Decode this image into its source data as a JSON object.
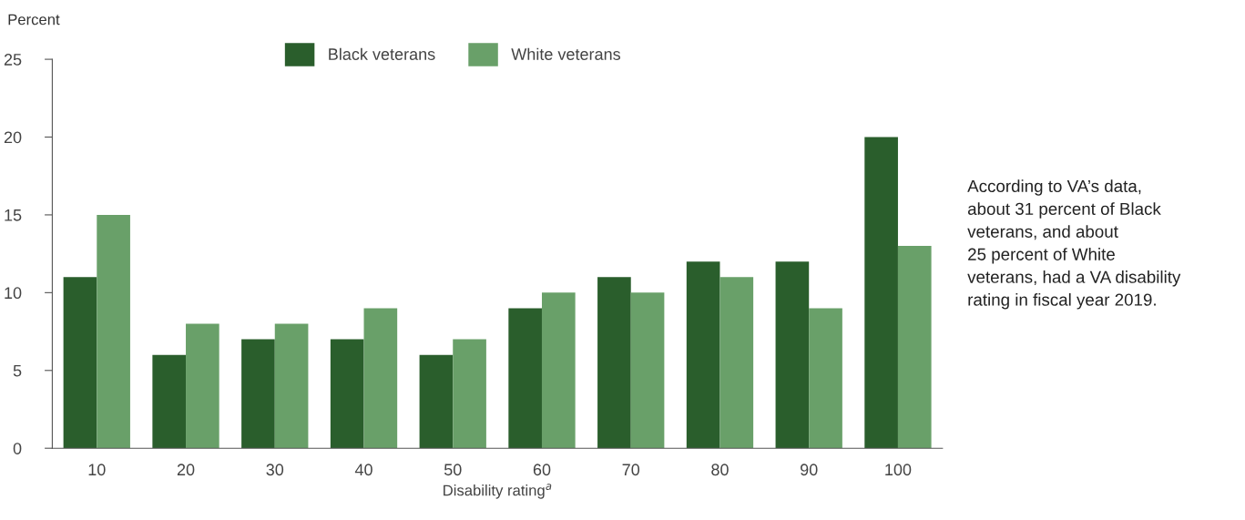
{
  "chart_data": {
    "type": "bar",
    "xlabel": "Disability rating$^{a}$",
    "ylabel": "Percent",
    "categories": [
      "10",
      "20",
      "30",
      "40",
      "50",
      "60",
      "70",
      "80",
      "90",
      "100"
    ],
    "series": [
      {
        "name": "Black veterans",
        "color": "#2a5e2c",
        "values": [
          11,
          6,
          7,
          7,
          6,
          9,
          11,
          12,
          12,
          20
        ]
      },
      {
        "name": "White veterans",
        "color": "#69a069",
        "values": [
          15,
          8,
          8,
          9,
          7,
          10,
          10,
          11,
          9,
          13
        ]
      }
    ],
    "ylim": [
      0,
      25
    ],
    "yticks": [
      0,
      5,
      10,
      15,
      20,
      25
    ],
    "grid": false,
    "legend": "top",
    "annotations": [
      "According to VA’s data,\nabout 31 percent of Black\nveterans, and about\n25 percent of White\nveterans, had a VA disability\nrating in fiscal year 2019."
    ]
  }
}
